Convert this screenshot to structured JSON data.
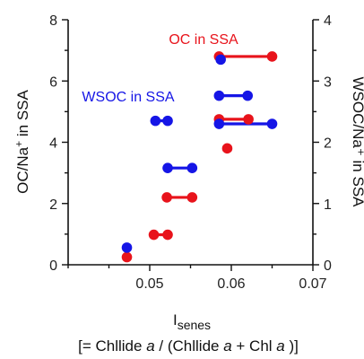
{
  "chart_data": {
    "type": "scatter",
    "xlabel": "I",
    "xlabel_sub": "senes",
    "xlabel_note_parts": [
      "[= Chllide ",
      "a",
      " / (Chllide ",
      "a",
      " + Chl ",
      "a",
      " )]"
    ],
    "ylabel_left_parts": [
      "OC/Na",
      "+",
      " in SSA"
    ],
    "ylabel_right": "WSOC/Na⁺ in SSA",
    "xlim": [
      0.04,
      0.07
    ],
    "ylim_left": [
      0,
      8
    ],
    "ylim_right": [
      0,
      4
    ],
    "x_ticks": [
      "0.05",
      "0.06",
      "0.07"
    ],
    "y_left_ticks": [
      "0",
      "2",
      "4",
      "6",
      "8"
    ],
    "y_right_ticks": [
      "0",
      "1",
      "2",
      "3",
      "4"
    ],
    "annotations": [
      {
        "text": "OC in SSA",
        "color": "#e8131b"
      },
      {
        "text": "WSOC in SSA",
        "color": "#1515e6"
      }
    ],
    "series": [
      {
        "name": "OC in SSA",
        "axis": "left",
        "color": "#e8131b",
        "points": [
          {
            "x": 0.0472,
            "y": 0.25
          },
          {
            "x": 0.0595,
            "y": 3.8
          },
          {
            "x": 0.0505,
            "y": 0.98
          },
          {
            "x": 0.0522,
            "y": 0.98
          },
          {
            "x": 0.0521,
            "y": 2.2
          },
          {
            "x": 0.0552,
            "y": 2.2
          },
          {
            "x": 0.0585,
            "y": 4.75
          },
          {
            "x": 0.0621,
            "y": 4.75
          },
          {
            "x": 0.0585,
            "y": 6.8
          },
          {
            "x": 0.065,
            "y": 6.8
          }
        ],
        "pairs": [
          [
            0.0505,
            0.0522,
            0.98
          ],
          [
            0.0521,
            0.0552,
            2.2
          ],
          [
            0.0585,
            0.0621,
            4.75
          ],
          [
            0.0585,
            0.065,
            6.8
          ]
        ]
      },
      {
        "name": "WSOC in SSA",
        "axis": "right",
        "color": "#1515e6",
        "points": [
          {
            "x": 0.0472,
            "y": 0.28
          },
          {
            "x": 0.0587,
            "y": 3.35
          },
          {
            "x": 0.0507,
            "y": 2.35
          },
          {
            "x": 0.0522,
            "y": 2.35
          },
          {
            "x": 0.0522,
            "y": 1.58
          },
          {
            "x": 0.0552,
            "y": 1.58
          },
          {
            "x": 0.0585,
            "y": 2.76
          },
          {
            "x": 0.062,
            "y": 2.76
          },
          {
            "x": 0.0585,
            "y": 2.3
          },
          {
            "x": 0.065,
            "y": 2.3
          }
        ],
        "pairs": [
          [
            0.0507,
            0.0522,
            2.35
          ],
          [
            0.0522,
            0.0552,
            1.58
          ],
          [
            0.0585,
            0.062,
            2.76
          ],
          [
            0.0585,
            0.065,
            2.3
          ]
        ]
      }
    ],
    "grid": false
  }
}
